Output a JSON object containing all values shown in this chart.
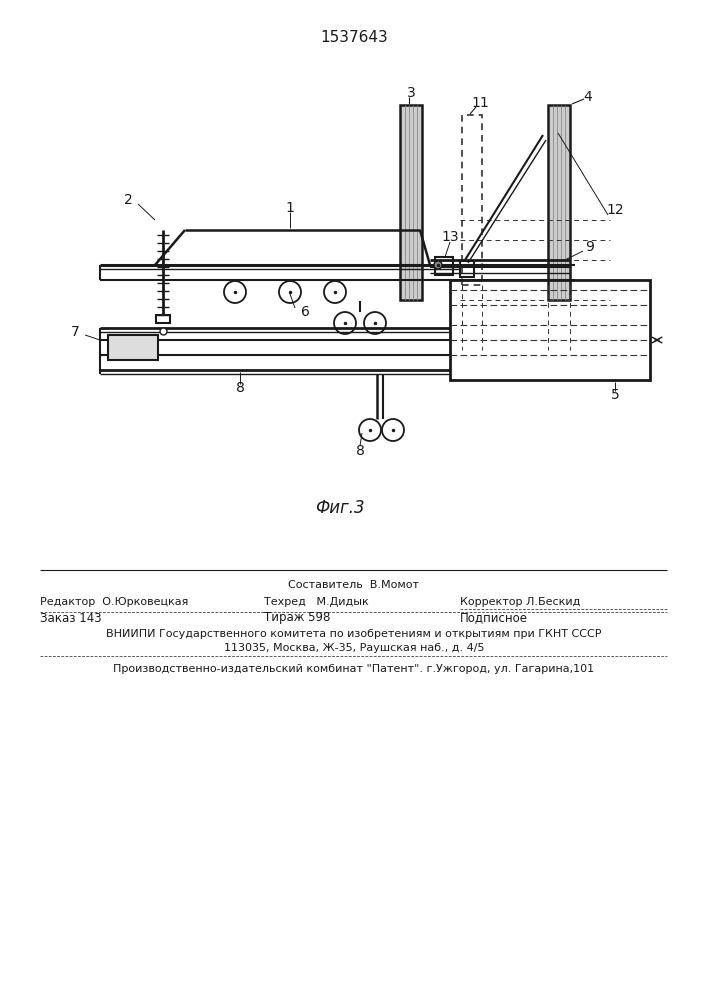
{
  "patent_number": "1537643",
  "fig_label": "Фиг.3",
  "bg": "#ffffff",
  "lc": "#1a1a1a",
  "dc": "#333333",
  "gray": "#aaaaaa",
  "footer": {
    "sestavitel": "Составитель  В.Момот",
    "redaktor": "Редактор  О.Юрковецкая",
    "tehred": "Техред   М.Дидык",
    "korrektor": "Корректор Л.Бескид",
    "zakaz": "Заказ 143",
    "tirazh": "Тираж 598",
    "podpisnoe": "Подписное",
    "vniipи": "ВНИИПИ Государственного комитета по изобретениям и открытиям при ГКНТ СССР",
    "address": "113035, Москва, Ж-35, Раушская наб., д. 4/5",
    "patent_firm": "Производственно-издательский комбинат \"Патент\". г.Ужгород, ул. Гагарина,101"
  }
}
